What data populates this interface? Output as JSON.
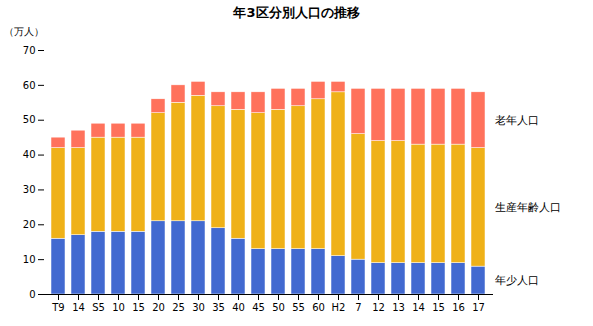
{
  "chart_data": {
    "type": "bar",
    "stacked": true,
    "title": "年3区分別人口の推移",
    "ylabel": "（万人）",
    "categories": [
      "T9",
      "14",
      "S5",
      "10",
      "15",
      "20",
      "25",
      "30",
      "35",
      "40",
      "45",
      "50",
      "55",
      "60",
      "H2",
      "7",
      "12",
      "13",
      "14",
      "15",
      "16",
      "17"
    ],
    "series": [
      {
        "name": "年少人口",
        "values": [
          16.0,
          17.0,
          18.0,
          18.0,
          18.0,
          21.0,
          21.0,
          21.0,
          19.0,
          16.0,
          13.0,
          13.0,
          13.0,
          13.0,
          11.0,
          10.0,
          9.0,
          9.0,
          9.0,
          9.0,
          9.0,
          8.0
        ]
      },
      {
        "name": "生産年齢人口",
        "values": [
          26.0,
          25.0,
          27.0,
          27.0,
          27.0,
          31.0,
          34.0,
          36.0,
          35.0,
          37.0,
          39.0,
          40.0,
          41.0,
          43.0,
          47.0,
          36.0,
          35.0,
          35.0,
          34.0,
          34.0,
          34.0,
          34.0
        ]
      },
      {
        "name": "老年人口",
        "values": [
          3.0,
          5.0,
          4.0,
          4.0,
          4.0,
          4.0,
          5.0,
          4.0,
          4.0,
          5.0,
          6.0,
          6.0,
          5.0,
          5.0,
          3.0,
          13.0,
          15.0,
          15.0,
          16.0,
          16.0,
          16.0,
          16.0
        ]
      }
    ],
    "ylim": [
      0,
      70
    ],
    "yticks": [
      0,
      10,
      20,
      30,
      40,
      50,
      60,
      70
    ],
    "grid": false,
    "legend": "right"
  }
}
